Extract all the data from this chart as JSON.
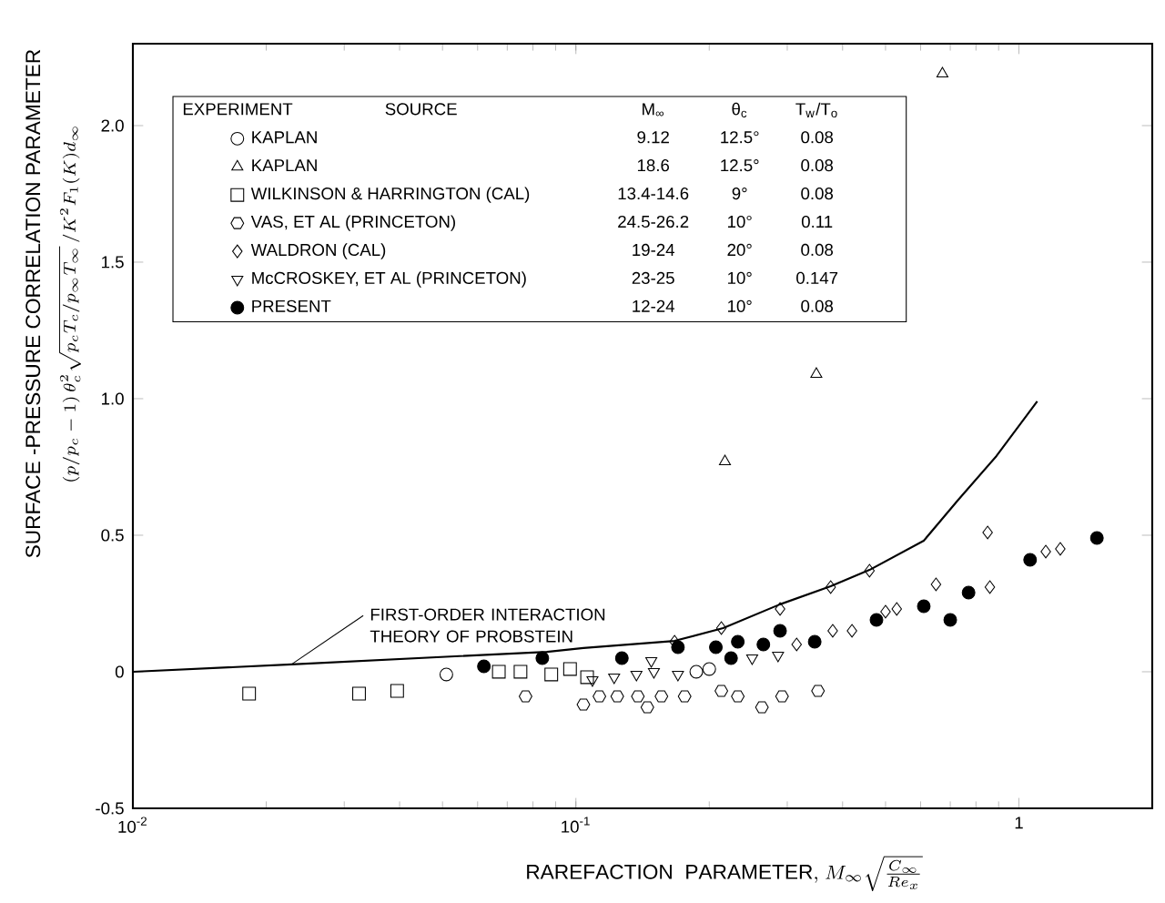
{
  "chart_data": {
    "type": "scatter",
    "xlabel": "\\mathrm{RAREFACTION\\ \\ PARAMETER,}\\ M_{\\infty}\\sqrt{\\frac{C_{\\infty}}{Re_{x}}}",
    "ylabel": "SURFACE -PRESSURE CORRELATION PARAMETER",
    "log": "x",
    "legend": "top",
    "xlim": [
      0.01,
      2
    ],
    "ylim": [
      -0.5,
      2.3
    ],
    "xticks": [
      {
        "value": 0.01,
        "label": "10$^{-2}$"
      },
      {
        "value": 0.1,
        "label": "10$^{-1}$"
      },
      1
    ],
    "yticks": [
      -0.5,
      0,
      0.5,
      {
        "value": 1,
        "label": "1.0"
      },
      {
        "value": 1.5,
        "label": "1.5"
      },
      {
        "value": 2,
        "label": "2.0"
      }
    ],
    "annotations": [
      "(p/p_{c}-1)\\,\\theta_{c}^{2}\\sqrt{p_{c}T_{c}/p_{\\infty}T_{\\infty}}\\,/K^{2}F_{1}(K)d_{\\infty}",
      "EXPERIMENT",
      "M$_{∞}$",
      "θ$_{c}$",
      "T$_{w}$/T$_{o}$",
      "SOURCE",
      "9.12",
      "12.5°",
      "0.08",
      "18.6",
      "12.5°",
      "0.08",
      "13.4-14.6",
      "9°",
      "0.08",
      "24.5-26.2",
      "10°",
      "0.11",
      "19-24",
      "20°",
      "0.08",
      "23-25",
      "10°",
      "0.147",
      "12-24",
      "10°",
      "0.08"
    ],
    "series": [
      {
        "name": "KAPLAN",
        "color": "#000000",
        "marker": "circle",
        "x": [
          0.051,
          0.187,
          0.2
        ],
        "values": [
          -0.01,
          0.0,
          0.01
        ]
      },
      {
        "name": "KAPLAN",
        "color": "#000000",
        "marker": "triangle",
        "x": [
          0.217,
          0.349,
          0.672
        ],
        "values": [
          0.77,
          1.09,
          2.19
        ]
      },
      {
        "name": "WILKINSON & HARRINGTON (CAL)",
        "color": "#000000",
        "marker": "square",
        "x": [
          0.0183,
          0.0324,
          0.0395,
          0.067,
          0.075,
          0.088,
          0.097,
          0.106
        ],
        "values": [
          -0.08,
          -0.08,
          -0.07,
          0.0,
          0.0,
          -0.01,
          0.01,
          -0.02
        ]
      },
      {
        "name": "VAS, ET AL (PRINCETON)",
        "color": "#000000",
        "x": [
          0.077,
          0.104,
          0.113,
          0.124,
          0.138,
          0.145,
          0.156,
          0.176,
          0.213,
          0.232,
          0.263,
          0.292,
          0.352
        ],
        "values": [
          -0.09,
          -0.12,
          -0.09,
          -0.09,
          -0.09,
          -0.13,
          -0.09,
          -0.09,
          -0.07,
          -0.09,
          -0.13,
          -0.09,
          -0.07
        ]
      },
      {
        "name": "WALDRON (CAL)",
        "color": "#000000",
        "marker": "diamond",
        "x": [
          0.167,
          0.213,
          0.289,
          0.376,
          0.46,
          0.85,
          0.315,
          0.38,
          0.42,
          0.5,
          0.53,
          0.65,
          0.86,
          1.15,
          1.24
        ],
        "values": [
          0.11,
          0.16,
          0.23,
          0.31,
          0.37,
          0.51,
          0.1,
          0.15,
          0.15,
          0.22,
          0.23,
          0.32,
          0.31,
          0.44,
          0.45
        ]
      },
      {
        "name": "McCROSKEY, ET AL (PRINCETON)",
        "color": "#000000",
        "marker": "triangle down",
        "x": [
          0.109,
          0.122,
          0.137,
          0.148,
          0.15,
          0.17,
          0.25,
          0.286
        ],
        "values": [
          -0.03,
          -0.02,
          -0.01,
          0.04,
          0.0,
          -0.01,
          0.05,
          0.06
        ]
      },
      {
        "name": "PRESENT",
        "color": "#000000",
        "marker": "filled circle",
        "x": [
          0.062,
          0.084,
          0.127,
          0.17,
          0.207,
          0.224,
          0.232,
          0.265,
          0.289,
          0.346,
          0.477,
          0.61,
          0.7,
          0.77,
          1.06,
          1.5
        ],
        "values": [
          0.02,
          0.05,
          0.05,
          0.09,
          0.09,
          0.05,
          0.11,
          0.1,
          0.15,
          0.11,
          0.19,
          0.24,
          0.19,
          0.29,
          0.41,
          0.49
        ]
      },
      {
        "name": "FIRST-ORDER INTERACTION THEORY OF PROBSTEIN",
        "color": "#000000",
        "type": "line",
        "x": [
          0.01,
          0.0228,
          0.086,
          0.104,
          0.167,
          0.215,
          0.289,
          0.376,
          0.46,
          0.61,
          0.73,
          0.89,
          1.1
        ],
        "values": [
          0,
          0.027,
          0.073,
          0.087,
          0.113,
          0.16,
          0.247,
          0.313,
          0.373,
          0.48,
          0.63,
          0.79,
          0.99
        ]
      }
    ]
  }
}
